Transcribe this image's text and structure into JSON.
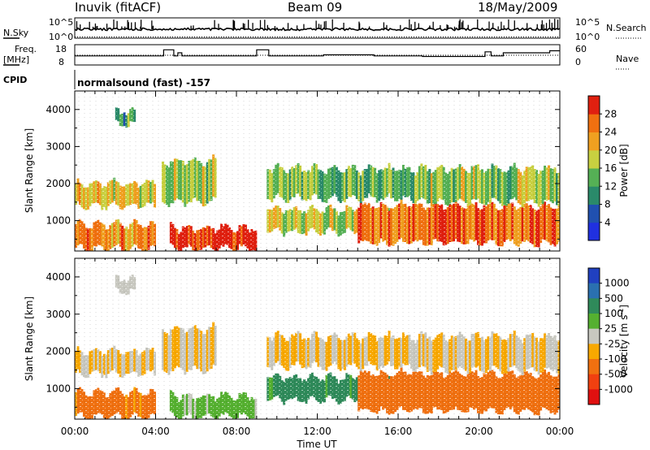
{
  "header": {
    "station": "Inuvik (fitACF)",
    "beam": "Beam 09",
    "date": "18/May/2009"
  },
  "noise_panel": {
    "left_label": "N.Sky",
    "right_label": "N.Search",
    "tick_top": "10^5",
    "tick_bottom": "10^0"
  },
  "freq_panel": {
    "left_label_1": "Freq.",
    "left_label_2": "[MHz]",
    "left_ticks": [
      "18",
      "8"
    ],
    "right_ticks": [
      "60",
      "0"
    ],
    "right_label": "Nave"
  },
  "cpid": {
    "label": "CPID",
    "text": "normalsound (fast) -157"
  },
  "axes": {
    "ylabel": "Slant Range [km]",
    "xlabel": "Time UT",
    "y_ticks": [
      "1000",
      "2000",
      "3000",
      "4000"
    ],
    "x_ticks": [
      "00:00",
      "04:00",
      "08:00",
      "12:00",
      "16:00",
      "20:00",
      "00:00"
    ]
  },
  "power_colorbar": {
    "label": "Power [dB]",
    "ticks": [
      "4",
      "8",
      "12",
      "16",
      "20",
      "24",
      "28"
    ],
    "colors": [
      "#2030e0",
      "#2050b0",
      "#2a8a6a",
      "#55b055",
      "#c8d040",
      "#f0a020",
      "#f07010",
      "#e02010"
    ]
  },
  "velocity_colorbar": {
    "label": "Velocity [m s",
    "label_sup": "-1",
    "label_end": "]",
    "ticks": [
      "1000",
      "500",
      "100",
      "25",
      "-25",
      "-100",
      "-500",
      "-1000"
    ],
    "colors": [
      "#2040c0",
      "#2a70b0",
      "#2f8a5a",
      "#55b030",
      "#c8c8c0",
      "#f8a800",
      "#f07010",
      "#f04010",
      "#e01010"
    ]
  },
  "chart_data": {
    "type": "heatmap",
    "title": "Inuvik (fitACF) Beam 09 18/May/2009",
    "xlabel": "Time UT",
    "ylabel": "Slant Range [km]",
    "x_range_hours": [
      0,
      24
    ],
    "ylim_km": [
      180,
      4500
    ],
    "panels": [
      "Power [dB]",
      "Velocity [m s-1]"
    ],
    "freq_mhz_segments": [
      {
        "start": 0.0,
        "end": 4.4,
        "freq": 12.5
      },
      {
        "start": 4.4,
        "end": 4.9,
        "freq": 15.5
      },
      {
        "start": 4.9,
        "end": 5.1,
        "freq": 12.5
      },
      {
        "start": 5.1,
        "end": 5.3,
        "freq": 14.0
      },
      {
        "start": 5.3,
        "end": 9.0,
        "freq": 12.5
      },
      {
        "start": 9.0,
        "end": 9.6,
        "freq": 15.5
      },
      {
        "start": 9.6,
        "end": 12.3,
        "freq": 12.5
      },
      {
        "start": 12.3,
        "end": 14.8,
        "freq": 13.0
      },
      {
        "start": 14.8,
        "end": 17.2,
        "freq": 12.5
      },
      {
        "start": 17.2,
        "end": 20.3,
        "freq": 12.2
      },
      {
        "start": 20.3,
        "end": 20.6,
        "freq": 14.5
      },
      {
        "start": 20.6,
        "end": 21.2,
        "freq": 12.5
      },
      {
        "start": 21.2,
        "end": 23.5,
        "freq": 14.0
      },
      {
        "start": 23.5,
        "end": 24.0,
        "freq": 15.0
      }
    ],
    "echo_bands": [
      {
        "start": 0.0,
        "end": 4.0,
        "range_min": 250,
        "range_max": 900,
        "power": 24,
        "velocity": -150
      },
      {
        "start": 0.0,
        "end": 4.0,
        "range_min": 1400,
        "range_max": 2000,
        "power": 20,
        "velocity": -25
      },
      {
        "start": 4.7,
        "end": 9.0,
        "range_min": 250,
        "range_max": 800,
        "power": 30,
        "velocity": 40
      },
      {
        "start": 4.3,
        "end": 7.0,
        "range_min": 1500,
        "range_max": 2600,
        "power": 16,
        "velocity": -25
      },
      {
        "start": 9.5,
        "end": 17.0,
        "range_min": 1600,
        "range_max": 2400,
        "power": 14,
        "velocity": -25
      },
      {
        "start": 9.5,
        "end": 17.0,
        "range_min": 700,
        "range_max": 1300,
        "power": 18,
        "velocity": 150
      },
      {
        "start": 14.0,
        "end": 24.0,
        "range_min": 400,
        "range_max": 1400,
        "power": 26,
        "velocity": -200
      },
      {
        "start": 17.0,
        "end": 24.0,
        "range_min": 1500,
        "range_max": 2400,
        "power": 16,
        "velocity": -25
      },
      {
        "start": 2.0,
        "end": 3.0,
        "range_min": 3600,
        "range_max": 3950,
        "power": 12,
        "velocity": 10
      }
    ]
  }
}
